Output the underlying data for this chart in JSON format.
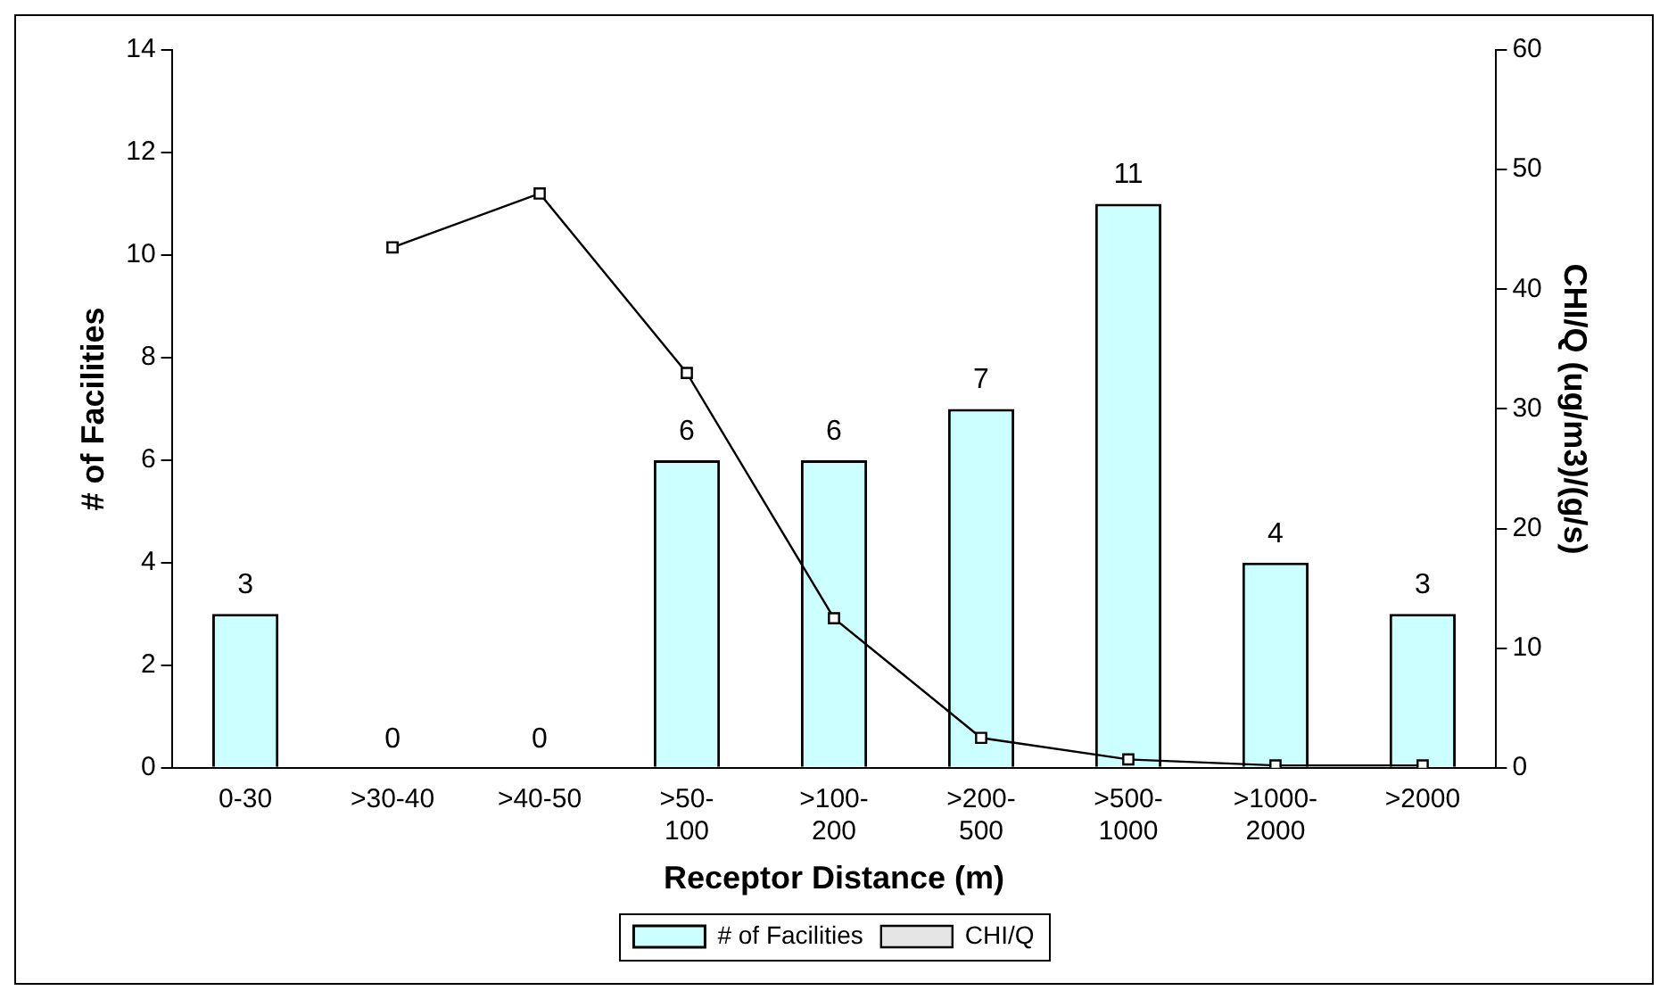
{
  "chart_data": {
    "type": "bar",
    "xlabel": "Receptor Distance (m)",
    "ylabel": "# of Facilities",
    "y2label": "CHI/Q (ug/m3)/(g/s)",
    "categories": [
      "0-30",
      ">30-40",
      ">40-50",
      ">50-100",
      ">100-200",
      ">200-500",
      ">500-1000",
      ">1000-2000",
      ">2000"
    ],
    "series": [
      {
        "name": "# of Facilities",
        "color": "#ccffff",
        "values": [
          3,
          0,
          0,
          6,
          6,
          7,
          11,
          4,
          3
        ],
        "value_labels": [
          "3",
          "0",
          "0",
          "6",
          "6",
          "7",
          "11",
          "4",
          "3"
        ]
      },
      {
        "name": "CHI/Q",
        "type": "line",
        "axis": "y2",
        "color": "#000000",
        "marker": "square",
        "values": [
          null,
          43.5,
          48,
          33,
          12.5,
          2.5,
          0.7,
          0.2,
          0.2
        ]
      }
    ],
    "ylim": [
      0,
      14
    ],
    "yticks": [
      0,
      2,
      4,
      6,
      8,
      10,
      12,
      14
    ],
    "y2lim": [
      0,
      60
    ],
    "y2ticks": [
      0,
      10,
      20,
      30,
      40,
      50,
      60
    ],
    "grid": false,
    "legend": "bottom"
  }
}
